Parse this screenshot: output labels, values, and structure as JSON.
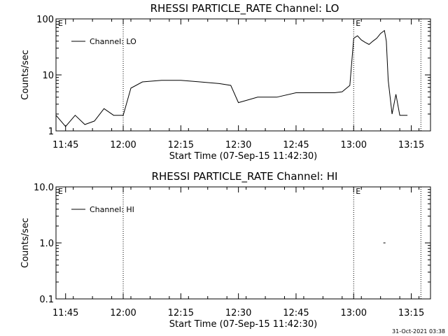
{
  "footer_timestamp": "31-Oct-2021 03:38",
  "chart_data": [
    {
      "type": "line",
      "title": "RHESSI PARTICLE_RATE Channel: LO",
      "xlabel": "Start Time (07-Sep-15 11:42:30)",
      "ylabel": "Counts/sec",
      "legend": {
        "label": "Channel: LO",
        "position": "top-left"
      },
      "y_scale": "log",
      "xlim": [
        "11:42:30",
        "13:20:00"
      ],
      "ylim": [
        1,
        100
      ],
      "x_ticks": [
        "11:45",
        "12:00",
        "12:15",
        "12:30",
        "12:45",
        "13:00",
        "13:15"
      ],
      "y_ticks": [
        "1",
        "10",
        "100"
      ],
      "event_lines": [
        "12:00",
        "13:00",
        "13:17:30"
      ],
      "event_markers": [
        {
          "time": "11:42:30",
          "label": "E"
        },
        {
          "time": "13:00",
          "label": "E"
        }
      ],
      "series": [
        {
          "name": "Channel: LO",
          "x": [
            "11:42:30",
            "11:45",
            "11:47:30",
            "11:50",
            "11:52:30",
            "11:55",
            "11:57:30",
            "12:00",
            "12:02",
            "12:05",
            "12:10",
            "12:15",
            "12:20",
            "12:25",
            "12:28",
            "12:30",
            "12:32",
            "12:35",
            "12:40",
            "12:45",
            "12:50",
            "12:55",
            "12:57",
            "12:59",
            "13:00",
            "13:01",
            "13:02",
            "13:03",
            "13:04",
            "13:05",
            "13:06",
            "13:07",
            "13:08",
            "13:08:30",
            "13:09",
            "13:10",
            "13:11",
            "13:12",
            "13:13",
            "13:14"
          ],
          "y": [
            1.9,
            1.2,
            1.9,
            1.3,
            1.5,
            2.5,
            1.9,
            1.9,
            5.8,
            7.5,
            8.0,
            8.0,
            7.5,
            7.0,
            6.5,
            3.2,
            3.5,
            4.0,
            4.0,
            4.8,
            4.8,
            4.8,
            5.0,
            6.5,
            45,
            50,
            42,
            38,
            35,
            40,
            45,
            55,
            62,
            40,
            8,
            2.0,
            4.5,
            1.9,
            1.9,
            1.9
          ]
        }
      ]
    },
    {
      "type": "line",
      "title": "RHESSI PARTICLE_RATE Channel: HI",
      "xlabel": "Start Time (07-Sep-15 11:42:30)",
      "ylabel": "Counts/sec",
      "legend": {
        "label": "Channel: HI",
        "position": "top-left"
      },
      "y_scale": "log",
      "xlim": [
        "11:42:30",
        "13:20:00"
      ],
      "ylim": [
        0.1,
        10
      ],
      "x_ticks": [
        "11:45",
        "12:00",
        "12:15",
        "12:30",
        "12:45",
        "13:00",
        "13:15"
      ],
      "y_ticks": [
        "0.1",
        "1.0",
        "10.0"
      ],
      "event_lines": [
        "12:00",
        "13:00",
        "13:17:30"
      ],
      "event_markers": [
        {
          "time": "11:42:30",
          "label": "E"
        },
        {
          "time": "13:00",
          "label": "E"
        }
      ],
      "series": [
        {
          "name": "Channel: HI",
          "x": [
            "13:08"
          ],
          "y": [
            1.0
          ]
        }
      ]
    }
  ]
}
